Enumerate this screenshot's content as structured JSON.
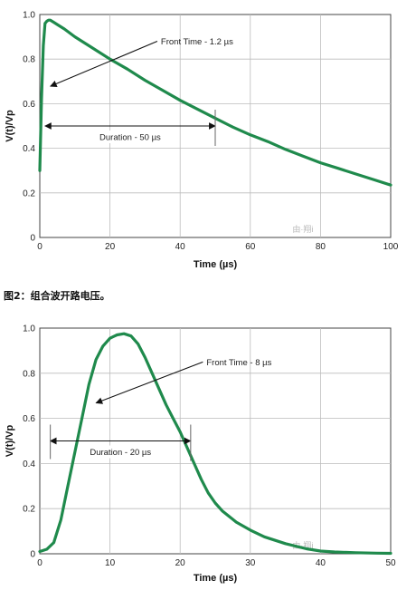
{
  "caption": "图2：组合波开路电压。",
  "colors": {
    "curve": "#1f8a4c",
    "grid": "#bcbcbc",
    "axis": "#444444",
    "arrow": "#111111"
  },
  "chart_data": [
    {
      "type": "line",
      "xlabel": "Time (µs)",
      "ylabel": "V(t)/Vp",
      "xlim": [
        0,
        100
      ],
      "ylim": [
        0,
        1.0
      ],
      "x_ticks": [
        0,
        20,
        40,
        60,
        80,
        100
      ],
      "y_ticks": [
        0,
        0.2,
        0.4,
        0.6,
        0.8,
        1.0
      ],
      "x_tick_labels": [
        "0",
        "20",
        "40",
        "60",
        "80",
        "100"
      ],
      "y_tick_labels": [
        "0",
        "0.2",
        "0.4",
        "0.6",
        "0.8",
        "1.0"
      ],
      "grid": true,
      "series": [
        {
          "x": [
            0,
            0.5,
            1.0,
            1.5,
            2,
            2.5,
            3,
            4,
            5,
            7,
            10,
            15,
            20,
            25,
            30,
            35,
            40,
            45,
            50,
            55,
            60,
            65,
            70,
            75,
            80,
            85,
            90,
            95,
            100
          ],
          "y": [
            0.3,
            0.62,
            0.86,
            0.96,
            0.97,
            0.975,
            0.975,
            0.965,
            0.955,
            0.935,
            0.9,
            0.85,
            0.8,
            0.755,
            0.705,
            0.66,
            0.615,
            0.575,
            0.535,
            0.495,
            0.46,
            0.43,
            0.395,
            0.365,
            0.335,
            0.31,
            0.285,
            0.26,
            0.235
          ]
        }
      ],
      "annotations": [
        {
          "text": "Front Time - 1.2 µs",
          "target_x": 2,
          "target_y": 0.67,
          "text_x": 34,
          "text_y": 0.88
        },
        {
          "text": "Duration - 50 µs",
          "from_x": 1.5,
          "to_x": 50,
          "at_y": 0.5,
          "marker_x": 50
        }
      ],
      "watermark": "由·翔i"
    },
    {
      "type": "line",
      "xlabel": "Time (µs)",
      "ylabel": "V(t)/Vp",
      "xlim": [
        0,
        50
      ],
      "ylim": [
        0,
        1.0
      ],
      "x_ticks": [
        0,
        10,
        20,
        30,
        40,
        50
      ],
      "y_ticks": [
        0,
        0.2,
        0.4,
        0.6,
        0.8,
        1.0
      ],
      "x_tick_labels": [
        "0",
        "10",
        "20",
        "30",
        "40",
        "50"
      ],
      "y_tick_labels": [
        "0",
        "0.2",
        "0.4",
        "0.6",
        "0.8",
        "1.0"
      ],
      "grid": true,
      "series": [
        {
          "x": [
            0,
            1,
            2,
            3,
            4,
            5,
            6,
            7,
            8,
            9,
            10,
            11,
            12,
            13,
            14,
            15,
            16,
            17,
            18,
            19,
            20,
            21,
            22,
            23,
            24,
            25,
            26,
            28,
            30,
            32,
            35,
            38,
            40,
            42,
            45,
            48,
            50
          ],
          "y": [
            0.01,
            0.02,
            0.05,
            0.15,
            0.3,
            0.45,
            0.6,
            0.75,
            0.86,
            0.92,
            0.955,
            0.97,
            0.975,
            0.965,
            0.93,
            0.87,
            0.8,
            0.73,
            0.66,
            0.6,
            0.54,
            0.47,
            0.4,
            0.33,
            0.27,
            0.225,
            0.19,
            0.14,
            0.105,
            0.075,
            0.045,
            0.022,
            0.012,
            0.008,
            0.005,
            0.003,
            0.002
          ]
        }
      ],
      "annotations": [
        {
          "text": "Front Time - 8 µs",
          "target_x": 7.5,
          "target_y": 0.66,
          "text_x": 23.5,
          "text_y": 0.85
        },
        {
          "text": "Duration - 20 µs",
          "from_x": 1.5,
          "to_x": 21.5,
          "at_y": 0.5,
          "marker_x": 21.5
        }
      ],
      "watermark": "由·翔i"
    }
  ]
}
